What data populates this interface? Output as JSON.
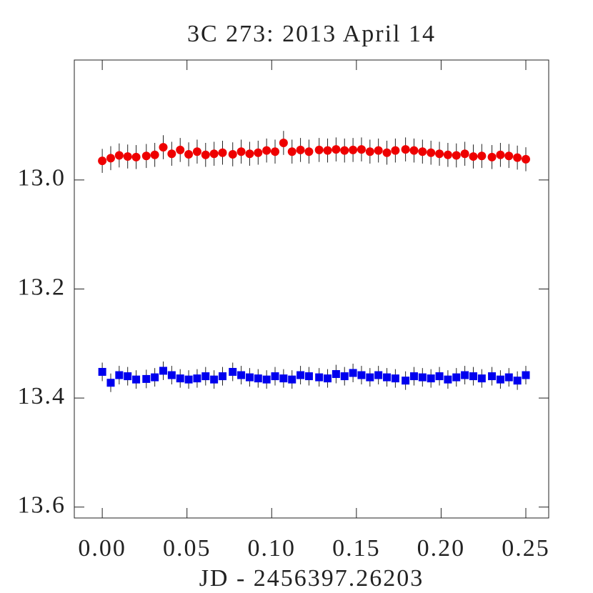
{
  "chart_data": {
    "type": "scatter",
    "title": "3C 273: 2013 April 14",
    "xlabel": "JD - 2456397.26203",
    "xlim": [
      -0.0165,
      0.2635
    ],
    "ylim": [
      12.78,
      13.62
    ],
    "yinverted": true,
    "xticks": [
      {
        "value": 0,
        "label": "0.00"
      },
      0.05,
      {
        "value": 0.1,
        "label": "0.10"
      },
      0.15,
      {
        "value": 0.2,
        "label": "0.20"
      },
      0.25
    ],
    "yticks": [
      {
        "value": 13,
        "label": "13.0"
      },
      13.2,
      13.4,
      13.6
    ],
    "x": [
      0,
      0.005,
      0.01,
      0.015,
      0.02,
      0.026,
      0.031,
      0.036,
      0.041,
      0.046,
      0.051,
      0.056,
      0.061,
      0.066,
      0.071,
      0.077,
      0.082,
      0.087,
      0.092,
      0.097,
      0.102,
      0.107,
      0.112,
      0.117,
      0.122,
      0.128,
      0.133,
      0.138,
      0.143,
      0.148,
      0.153,
      0.158,
      0.163,
      0.168,
      0.173,
      0.179,
      0.184,
      0.189,
      0.194,
      0.199,
      0.204,
      0.209,
      0.214,
      0.219,
      0.224,
      0.23,
      0.235,
      0.24,
      0.245,
      0.25
    ],
    "series": [
      {
        "color": "#ee0000",
        "marker": "circle",
        "values": [
          12.965,
          12.96,
          12.955,
          12.957,
          12.958,
          12.956,
          12.954,
          12.94,
          12.952,
          12.945,
          12.953,
          12.948,
          12.954,
          12.952,
          12.95,
          12.953,
          12.948,
          12.952,
          12.95,
          12.946,
          12.948,
          12.932,
          12.948,
          12.945,
          12.948,
          12.945,
          12.946,
          12.944,
          12.946,
          12.945,
          12.944,
          12.948,
          12.946,
          12.95,
          12.946,
          12.944,
          12.946,
          12.948,
          12.95,
          12.952,
          12.954,
          12.955,
          12.952,
          12.957,
          12.956,
          12.958,
          12.954,
          12.956,
          12.959,
          12.962
        ],
        "errors": [
          0.022,
          0.022,
          0.022,
          0.022,
          0.022,
          0.022,
          0.022,
          0.022,
          0.022,
          0.022,
          0.022,
          0.022,
          0.022,
          0.022,
          0.022,
          0.022,
          0.022,
          0.022,
          0.022,
          0.022,
          0.022,
          0.022,
          0.022,
          0.022,
          0.022,
          0.022,
          0.022,
          0.022,
          0.022,
          0.022,
          0.022,
          0.022,
          0.022,
          0.022,
          0.022,
          0.022,
          0.022,
          0.022,
          0.022,
          0.022,
          0.022,
          0.022,
          0.022,
          0.022,
          0.022,
          0.022,
          0.022,
          0.022,
          0.022,
          0.022
        ]
      },
      {
        "color": "#0000ee",
        "marker": "square",
        "values": [
          13.352,
          13.372,
          13.358,
          13.36,
          13.366,
          13.365,
          13.362,
          13.35,
          13.358,
          13.364,
          13.366,
          13.364,
          13.36,
          13.366,
          13.36,
          13.352,
          13.358,
          13.362,
          13.364,
          13.366,
          13.36,
          13.364,
          13.366,
          13.358,
          13.36,
          13.362,
          13.364,
          13.356,
          13.36,
          13.354,
          13.358,
          13.362,
          13.358,
          13.362,
          13.364,
          13.368,
          13.36,
          13.362,
          13.364,
          13.36,
          13.366,
          13.362,
          13.358,
          13.36,
          13.364,
          13.36,
          13.366,
          13.362,
          13.368,
          13.358
        ],
        "errors": [
          0.017,
          0.017,
          0.017,
          0.017,
          0.017,
          0.017,
          0.017,
          0.017,
          0.017,
          0.017,
          0.017,
          0.017,
          0.017,
          0.017,
          0.017,
          0.017,
          0.017,
          0.017,
          0.017,
          0.017,
          0.017,
          0.017,
          0.017,
          0.017,
          0.017,
          0.017,
          0.017,
          0.017,
          0.017,
          0.017,
          0.017,
          0.017,
          0.017,
          0.017,
          0.017,
          0.017,
          0.017,
          0.017,
          0.017,
          0.017,
          0.017,
          0.017,
          0.017,
          0.017,
          0.017,
          0.017,
          0.017,
          0.017,
          0.017,
          0.017
        ]
      }
    ]
  }
}
